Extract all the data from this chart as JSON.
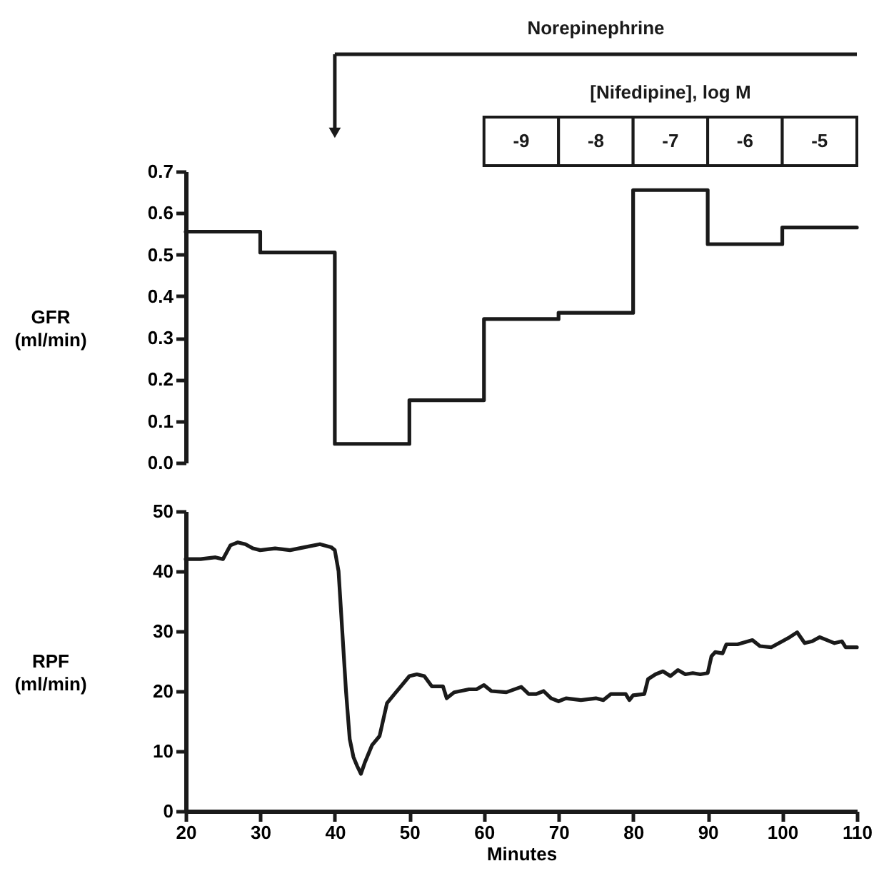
{
  "chart_data": [
    {
      "type": "step",
      "ylabel": "GFR (ml/min)",
      "annotations": [
        "Norepinephrine",
        "[Nifedipine], log M",
        "-9",
        "-8",
        "-7",
        "-6",
        "-5"
      ],
      "x": [
        20,
        30,
        40,
        50,
        60,
        70,
        80,
        90,
        100,
        110
      ],
      "values": [
        0.555,
        0.505,
        0.045,
        0.15,
        0.345,
        0.36,
        0.655,
        0.525,
        0.565,
        0.565
      ],
      "color": "#1a1a1a",
      "xlim": [
        20,
        110
      ],
      "ylim": [
        0,
        0.7
      ],
      "yticks": [
        {
          "value": 0,
          "label": "0.0"
        },
        0.1,
        0.2,
        0.3,
        0.4,
        0.5,
        0.6,
        0.7
      ],
      "tick_labels": "y"
    },
    {
      "type": "line",
      "xlabel": "Minutes",
      "ylabel": "RPF (ml/min)",
      "x": [
        20,
        22,
        24,
        25,
        26,
        27,
        28,
        29,
        30,
        32,
        34,
        36,
        38,
        39.5,
        40,
        40.5,
        41,
        41.5,
        42,
        42.5,
        43,
        43.5,
        44,
        45,
        46,
        47,
        48,
        49,
        50,
        51,
        52,
        53,
        54.5,
        55,
        56,
        58,
        59,
        60,
        61,
        63,
        65,
        66,
        67,
        68,
        69,
        70,
        71,
        73,
        75,
        76,
        77,
        79,
        79.5,
        80,
        81.5,
        82,
        83,
        84,
        85,
        86,
        87,
        88,
        89,
        90,
        90.5,
        91,
        92,
        92.5,
        94,
        96,
        97,
        98.5,
        100,
        101,
        102,
        103,
        104,
        105,
        106,
        107,
        108,
        108.5,
        110
      ],
      "values": [
        42,
        42,
        42.3,
        42,
        44.3,
        44.8,
        44.5,
        43.8,
        43.5,
        43.8,
        43.5,
        44,
        44.5,
        44,
        43.5,
        40,
        30,
        20,
        12,
        9,
        7.5,
        6.2,
        8,
        11,
        12.5,
        18,
        19.5,
        21,
        22.5,
        22.8,
        22.5,
        20.8,
        20.8,
        18.8,
        19.8,
        20.3,
        20.3,
        21,
        20,
        19.8,
        20.7,
        19.5,
        19.5,
        20,
        18.8,
        18.3,
        18.8,
        18.5,
        18.8,
        18.5,
        19.5,
        19.5,
        18.5,
        19.3,
        19.5,
        22,
        22.8,
        23.3,
        22.5,
        23.5,
        22.8,
        23,
        22.8,
        23,
        25.8,
        26.5,
        26.3,
        27.8,
        27.8,
        28.5,
        27.5,
        27.3,
        28.3,
        29,
        29.8,
        28,
        28.3,
        29,
        28.5,
        28,
        28.3,
        27.3,
        27.3
      ],
      "color": "#1a1a1a",
      "xlim": [
        20,
        110
      ],
      "xticks": [
        20,
        30,
        40,
        50,
        60,
        70,
        80,
        90,
        100,
        110
      ],
      "ylim": [
        0,
        50
      ],
      "yticks": [
        0,
        10,
        20,
        30,
        40,
        50
      ]
    }
  ]
}
